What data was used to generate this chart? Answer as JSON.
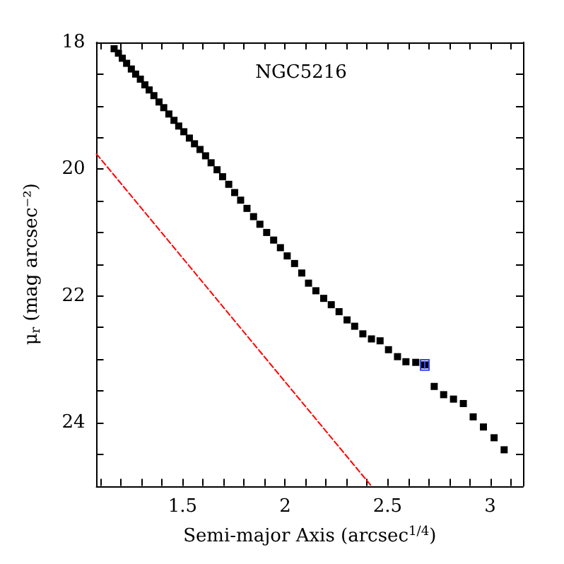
{
  "chart_data": {
    "type": "scatter",
    "title": "NGC5216",
    "xlabel": "Semi-major Axis (arcsec$^{1/4}$)",
    "ylabel": "μ$_{r}$ (mag arcsec⁻²)",
    "xlim": [
      1.08,
      3.16
    ],
    "ylim": [
      25,
      18
    ],
    "xticks": [
      {
        "value": 1.1,
        "label": null
      },
      {
        "value": 1.2,
        "label": null
      },
      {
        "value": 1.3,
        "label": null
      },
      {
        "value": 1.4,
        "label": null
      },
      1.5,
      {
        "value": 1.6,
        "label": null
      },
      {
        "value": 1.7,
        "label": null
      },
      {
        "value": 1.8,
        "label": null
      },
      {
        "value": 1.9,
        "label": null
      },
      2,
      {
        "value": 2.1,
        "label": null
      },
      {
        "value": 2.2,
        "label": null
      },
      {
        "value": 2.3,
        "label": null
      },
      {
        "value": 2.4,
        "label": null
      },
      2.5,
      {
        "value": 2.6,
        "label": null
      },
      {
        "value": 2.7,
        "label": null
      },
      {
        "value": 2.8,
        "label": null
      },
      {
        "value": 2.9,
        "label": null
      },
      3,
      {
        "value": 3.1,
        "label": null
      }
    ],
    "yticks": [
      18,
      {
        "value": 18.5,
        "label": null
      },
      {
        "value": 19,
        "label": null
      },
      {
        "value": 19.5,
        "label": null
      },
      20,
      {
        "value": 20.5,
        "label": null
      },
      {
        "value": 21,
        "label": null
      },
      {
        "value": 21.5,
        "label": null
      },
      22,
      {
        "value": 22.5,
        "label": null
      },
      {
        "value": 23,
        "label": null
      },
      {
        "value": 23.5,
        "label": null
      },
      24,
      {
        "value": 24.5,
        "label": null
      }
    ],
    "grid": false,
    "marker": "square",
    "series": [
      {
        "color": "#000000",
        "x": [
          1.166,
          1.187,
          1.206,
          1.227,
          1.25,
          1.271,
          1.294,
          1.316,
          1.337,
          1.36,
          1.385,
          1.408,
          1.433,
          1.458,
          1.481,
          1.506,
          1.533,
          1.558,
          1.585,
          1.612,
          1.639,
          1.668,
          1.695,
          1.725,
          1.754,
          1.783,
          1.814,
          1.846,
          1.877,
          1.91,
          1.944,
          1.977,
          2.01,
          2.046,
          2.081,
          2.114,
          2.15,
          2.188,
          2.225,
          2.263,
          2.302,
          2.339,
          2.379,
          2.421,
          2.463,
          2.504,
          2.548,
          2.589,
          2.637,
          2.681,
          2.727,
          2.773,
          2.821,
          2.869,
          2.917,
          2.967,
          3.019,
          3.068
        ],
        "values": [
          18.1,
          18.17,
          18.25,
          18.33,
          18.42,
          18.5,
          18.58,
          18.67,
          18.75,
          18.84,
          18.94,
          19.03,
          19.13,
          19.23,
          19.32,
          19.41,
          19.51,
          19.6,
          19.69,
          19.79,
          19.9,
          20.01,
          20.12,
          20.24,
          20.37,
          20.49,
          20.62,
          20.75,
          20.87,
          21.0,
          21.12,
          21.24,
          21.37,
          21.49,
          21.64,
          21.8,
          21.92,
          22.04,
          22.14,
          22.25,
          22.38,
          22.48,
          22.6,
          22.68,
          22.71,
          22.85,
          22.96,
          23.04,
          23.05,
          23.09,
          23.43,
          23.56,
          23.63,
          23.7,
          23.91,
          24.07,
          24.24,
          24.43
        ],
        "errors": [
          null,
          null,
          null,
          null,
          null,
          null,
          null,
          null,
          null,
          null,
          null,
          null,
          null,
          null,
          null,
          null,
          null,
          null,
          null,
          null,
          null,
          null,
          null,
          null,
          null,
          null,
          null,
          null,
          null,
          null,
          null,
          null,
          null,
          null,
          null,
          null,
          null,
          null,
          null,
          null,
          null,
          null,
          null,
          null,
          null,
          null,
          null,
          null,
          null,
          0.06,
          null,
          null,
          null,
          null,
          null,
          null,
          null,
          null
        ]
      },
      {
        "type": "line",
        "color": "#ff0000",
        "line_style": "dashed",
        "marker": "none",
        "x": [
          1.08,
          2.42
        ],
        "values": [
          19.76,
          25
        ]
      }
    ]
  }
}
